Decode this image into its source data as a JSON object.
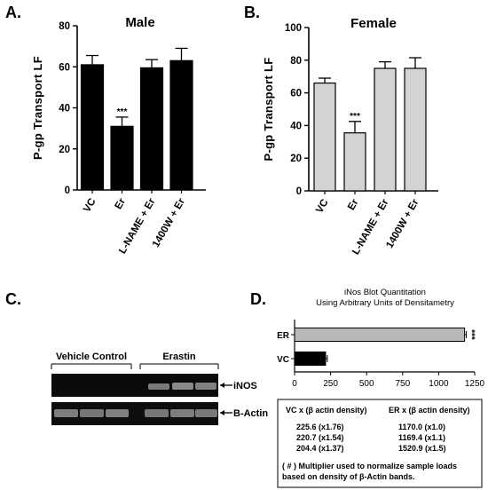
{
  "panels": {
    "A": {
      "letter": "A."
    },
    "B": {
      "letter": "B."
    },
    "C": {
      "letter": "C."
    },
    "D": {
      "letter": "D."
    }
  },
  "chart_data": [
    {
      "id": "A",
      "type": "bar",
      "title": "Male",
      "ylabel": "P-gp Transport  LF",
      "xlabel": "",
      "categories": [
        "VC",
        "Er",
        "L-NAME + Er",
        "1400W + Er"
      ],
      "values": [
        61,
        31,
        59.5,
        63
      ],
      "errors": [
        4.5,
        4.5,
        4,
        6
      ],
      "significance": [
        "",
        "***",
        "",
        ""
      ],
      "ylim": [
        0,
        80
      ],
      "yticks": [
        0,
        20,
        40,
        60,
        80
      ],
      "bar_color": "#000000",
      "grid": false
    },
    {
      "id": "B",
      "type": "bar",
      "title": "Female",
      "ylabel": "P-gp Transport  LF",
      "xlabel": "",
      "categories": [
        "VC",
        "Er",
        "L-NAME + Er",
        "1400W + Er"
      ],
      "values": [
        66,
        35.5,
        75,
        75
      ],
      "errors": [
        3,
        7,
        4,
        6.5
      ],
      "significance": [
        "",
        "***",
        "",
        ""
      ],
      "ylim": [
        0,
        100
      ],
      "yticks": [
        0,
        20,
        40,
        60,
        80,
        100
      ],
      "bar_color": "#d3d3d3",
      "grid": false
    },
    {
      "id": "D",
      "type": "bar",
      "orientation": "horizontal",
      "title": "iNos Blot Quantitation",
      "subtitle": "Using Arbitrary Units of Densitametry",
      "categories": [
        "ER",
        "VC"
      ],
      "values": [
        1180,
        215
      ],
      "errors": [
        12,
        12
      ],
      "significance": [
        "***",
        ""
      ],
      "xlim": [
        0,
        1250
      ],
      "xticks": [
        0,
        250,
        500,
        750,
        1000,
        1250
      ],
      "colors": [
        "#b8b8b8",
        "#000000"
      ],
      "grid": false
    }
  ],
  "blot": {
    "groups": [
      "Vehicle Control",
      "Erastin"
    ],
    "bands": [
      "iNOS",
      "B-Actin"
    ]
  },
  "table": {
    "headers": [
      "VC x (β actin density)",
      "ER x (β actin density)"
    ],
    "rows": [
      [
        "225.6 (x1.76)",
        "1170.0 (x1.0)"
      ],
      [
        "220.7 (x1.54)",
        "1169.4 (x1.1)"
      ],
      [
        "204.4 (x1.37)",
        "1520.9 (x1.5)"
      ]
    ],
    "note_line1": "( # ) Multiplier used to normalize sample loads",
    "note_line2": "based on density of β-Actin bands."
  }
}
